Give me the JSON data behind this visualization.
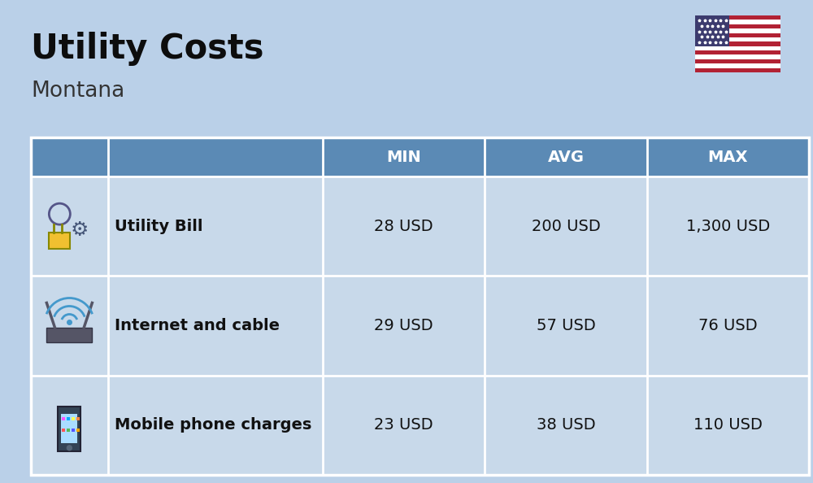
{
  "title": "Utility Costs",
  "subtitle": "Montana",
  "background_color": "#bad0e8",
  "header_color": "#5b8ab5",
  "header_text_color": "#ffffff",
  "row_bg_color": "#c8d9ea",
  "separator_color": "#ffffff",
  "col_headers": [
    "",
    "",
    "MIN",
    "AVG",
    "MAX"
  ],
  "rows": [
    {
      "label": "Utility Bill",
      "min": "28 USD",
      "avg": "200 USD",
      "max": "1,300 USD",
      "icon": "utility"
    },
    {
      "label": "Internet and cable",
      "min": "29 USD",
      "avg": "57 USD",
      "max": "76 USD",
      "icon": "internet"
    },
    {
      "label": "Mobile phone charges",
      "min": "23 USD",
      "avg": "38 USD",
      "max": "110 USD",
      "icon": "mobile"
    }
  ],
  "title_fontsize": 30,
  "subtitle_fontsize": 19,
  "header_fontsize": 14,
  "cell_fontsize": 14,
  "label_fontsize": 14,
  "title_color": "#0d0d0d",
  "subtitle_color": "#333333",
  "cell_text_color": "#111111"
}
